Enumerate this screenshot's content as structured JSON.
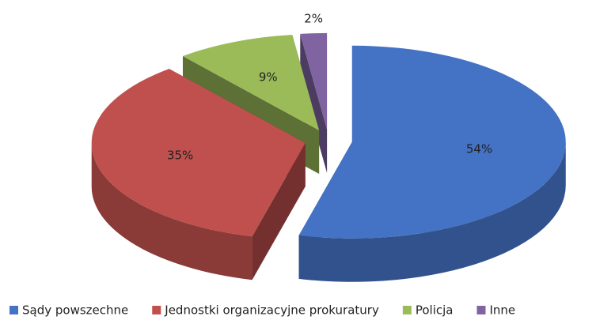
{
  "chart_data": {
    "type": "pie",
    "categories": [
      "Sądy powszechne",
      "Jednostki organizacyjne prokuratury",
      "Policja",
      "Inne"
    ],
    "values": [
      54,
      35,
      9,
      2
    ],
    "value_labels": [
      "54%",
      "35%",
      "9%",
      "2%"
    ],
    "colors": [
      "#4472c4",
      "#c0504d",
      "#9bbb59",
      "#8064a2"
    ],
    "legend": "bottom"
  }
}
